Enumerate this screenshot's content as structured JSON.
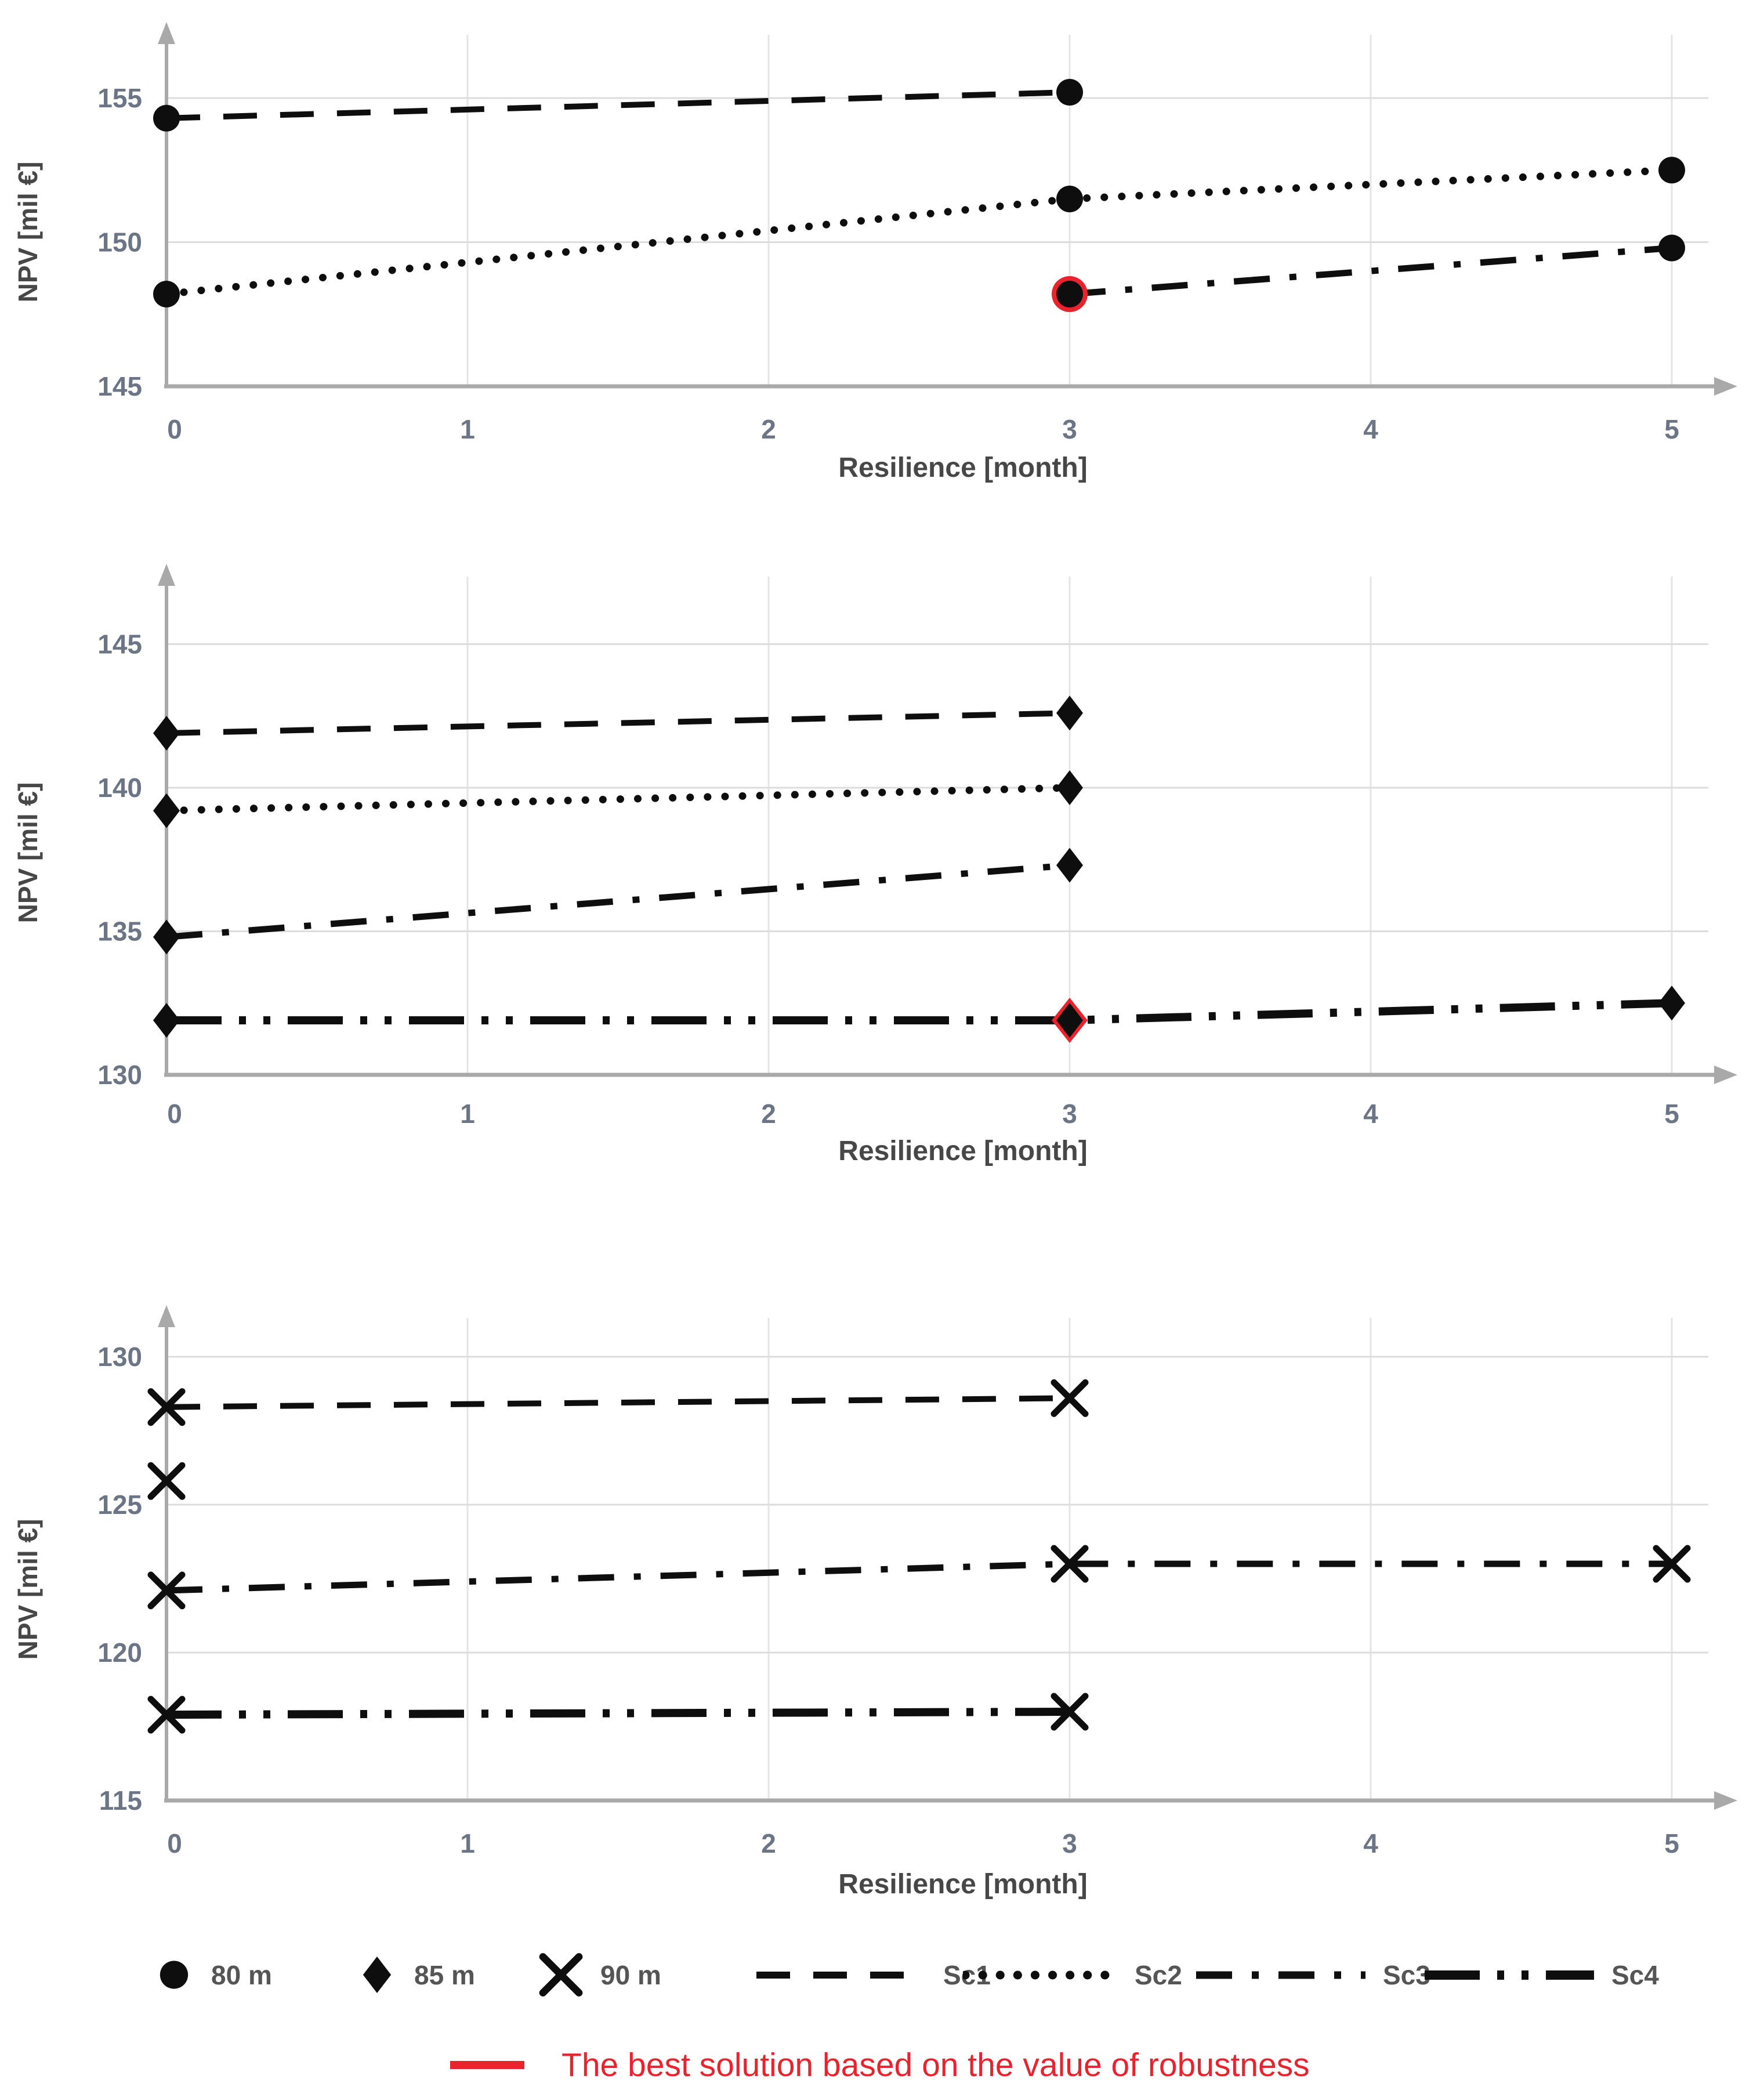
{
  "colors": {
    "series_black": "#0e0e0e",
    "highlight_red": "#e8232e",
    "tick_label": "#6b7585",
    "axis_title": "#474747",
    "legend_label": "#555555",
    "gridline": "#dcdcdc",
    "vertical_gridline": "#e4e4e4",
    "axis_line": "#a9a9a9",
    "background": "#ffffff"
  },
  "legend": {
    "markers": [
      {
        "symbol": "circle",
        "label": "80 m"
      },
      {
        "symbol": "diamond",
        "label": "85 m"
      },
      {
        "symbol": "x",
        "label": "90 m"
      }
    ],
    "lines": [
      {
        "name": "Sc1",
        "style": "dash"
      },
      {
        "name": "Sc2",
        "style": "dot"
      },
      {
        "name": "Sc3",
        "style": "dashdot"
      },
      {
        "name": "Sc4",
        "style": "dashdotdot"
      }
    ],
    "best_note": "The best solution based on the value of robustness"
  },
  "chart_data": [
    {
      "type": "line",
      "title": "",
      "marker": "circle",
      "depth_label": "80 m",
      "xlabel": "Resilience [month]",
      "ylabel": "NPV [mil €]",
      "xticks": [
        0,
        1,
        2,
        3,
        4,
        5
      ],
      "yticks": [
        145,
        150,
        155
      ],
      "xlim": [
        0,
        5.4
      ],
      "ylim": [
        145,
        157.5
      ],
      "grid": true,
      "series": [
        {
          "name": "Sc1",
          "style": "dash",
          "points": [
            [
              0,
              154.3
            ],
            [
              3,
              155.2
            ]
          ]
        },
        {
          "name": "Sc2",
          "style": "dot",
          "points": [
            [
              0,
              148.2
            ],
            [
              3,
              151.5
            ],
            [
              5,
              152.5
            ]
          ]
        },
        {
          "name": "Sc3",
          "style": "dashdot",
          "points": [
            [
              3,
              148.2
            ],
            [
              5,
              149.8
            ]
          ],
          "highlight_index": 0
        }
      ]
    },
    {
      "type": "line",
      "title": "",
      "marker": "diamond",
      "depth_label": "85 m",
      "xlabel": "Resilience [month]",
      "ylabel": "NPV [mil €]",
      "xticks": [
        0,
        1,
        2,
        3,
        4,
        5
      ],
      "yticks": [
        130,
        135,
        140,
        145
      ],
      "xlim": [
        0,
        5.4
      ],
      "ylim": [
        130,
        147.5
      ],
      "grid": true,
      "series": [
        {
          "name": "Sc1",
          "style": "dash",
          "points": [
            [
              0,
              141.9
            ],
            [
              3,
              142.6
            ]
          ]
        },
        {
          "name": "Sc2",
          "style": "dot",
          "points": [
            [
              0,
              139.2
            ],
            [
              3,
              140.0
            ]
          ]
        },
        {
          "name": "Sc3",
          "style": "dashdot",
          "points": [
            [
              0,
              134.8
            ],
            [
              3,
              137.3
            ]
          ]
        },
        {
          "name": "Sc4",
          "style": "dashdotdot",
          "points": [
            [
              0,
              131.9
            ],
            [
              3,
              131.9
            ],
            [
              5,
              132.5
            ]
          ],
          "highlight_index": 1
        }
      ]
    },
    {
      "type": "line",
      "title": "",
      "marker": "x",
      "depth_label": "90 m",
      "xlabel": "Resilience [month]",
      "ylabel": "NPV [mil €]",
      "xticks": [
        0,
        1,
        2,
        3,
        4,
        5
      ],
      "yticks": [
        115,
        120,
        125,
        130
      ],
      "xlim": [
        0,
        5.4
      ],
      "ylim": [
        115,
        132.5
      ],
      "grid": true,
      "series": [
        {
          "name": "Sc1",
          "style": "dash",
          "points": [
            [
              0,
              128.3
            ],
            [
              3,
              128.6
            ]
          ]
        },
        {
          "name": "Sc2",
          "style": "dot",
          "points": [
            [
              0,
              125.8
            ]
          ]
        },
        {
          "name": "Sc3",
          "style": "dashdot",
          "points": [
            [
              0,
              122.1
            ],
            [
              3,
              123.0
            ],
            [
              5,
              123.0
            ]
          ]
        },
        {
          "name": "Sc4",
          "style": "dashdotdot",
          "points": [
            [
              0,
              117.9
            ],
            [
              3,
              118.0
            ]
          ]
        }
      ]
    }
  ]
}
